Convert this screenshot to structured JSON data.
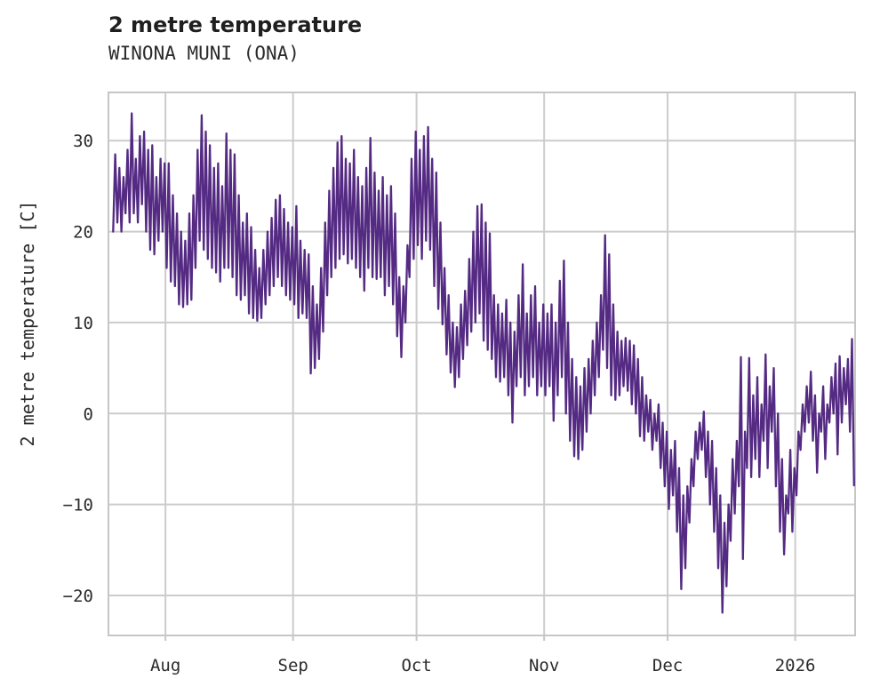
{
  "header": {
    "title": "2 metre temperature",
    "subtitle": "WINONA MUNI (ONA)"
  },
  "chart_data": {
    "type": "line",
    "title": "2 metre temperature",
    "subtitle": "WINONA MUNI (ONA)",
    "xlabel": "",
    "ylabel": "2 metre temperature [C]",
    "legend": "none",
    "grid": true,
    "line_color": "#542a83",
    "grid_color": "#cccccc",
    "spine_color": "#c6c6c6",
    "text_color": "#2b2b2b",
    "background_color": "#ffffff",
    "ylim": [
      -24.4,
      35.3
    ],
    "xlim_days": [
      -0.85,
      180.55
    ],
    "y_ticks": [
      -20,
      -10,
      0,
      10,
      20,
      30
    ],
    "x_ticks": [
      {
        "day": 13,
        "label": "Aug"
      },
      {
        "day": 44,
        "label": "Sep"
      },
      {
        "day": 74,
        "label": "Oct"
      },
      {
        "day": 105,
        "label": "Nov"
      },
      {
        "day": 135,
        "label": "Dec"
      },
      {
        "day": 166,
        "label": "2026"
      }
    ],
    "month_order": [
      "Jul",
      "Aug",
      "Sep",
      "Oct",
      "Nov",
      "Dec",
      "Jan"
    ],
    "daily_min_max": {
      "Jul": [
        [
          20,
          28.5
        ],
        [
          21,
          27
        ],
        [
          20,
          26
        ],
        [
          22,
          29
        ],
        [
          21,
          33
        ],
        [
          22,
          28
        ],
        [
          21,
          30.5
        ],
        [
          23,
          31
        ],
        [
          20,
          29
        ],
        [
          18,
          29.5
        ],
        [
          17.5,
          26
        ],
        [
          19,
          28
        ],
        [
          20,
          27.5
        ]
      ],
      "Aug": [
        [
          16,
          27.5
        ],
        [
          14.5,
          24
        ],
        [
          14,
          22
        ],
        [
          12,
          20
        ],
        [
          11.7,
          19
        ],
        [
          12,
          22
        ],
        [
          12.5,
          24
        ],
        [
          16,
          29
        ],
        [
          19,
          32.8
        ],
        [
          18,
          31
        ],
        [
          17,
          29.5
        ],
        [
          16,
          27
        ],
        [
          15.5,
          27.5
        ],
        [
          14.5,
          25
        ],
        [
          16,
          30.8
        ],
        [
          16,
          29
        ],
        [
          15,
          28.5
        ],
        [
          13,
          24
        ],
        [
          12.5,
          21
        ],
        [
          13,
          22
        ],
        [
          11,
          20.5
        ],
        [
          10.5,
          18
        ],
        [
          10.2,
          16
        ],
        [
          10.5,
          18
        ],
        [
          12,
          20
        ],
        [
          13,
          21.5
        ],
        [
          14,
          23.5
        ],
        [
          15,
          24
        ],
        [
          14,
          22.5
        ],
        [
          13,
          21
        ],
        [
          12.5,
          20.5
        ]
      ],
      "Sep": [
        [
          12,
          22.8
        ],
        [
          10.5,
          19
        ],
        [
          11,
          18
        ],
        [
          10.5,
          17.5
        ],
        [
          4.4,
          14
        ],
        [
          5,
          12
        ],
        [
          6,
          16
        ],
        [
          9,
          21
        ],
        [
          13,
          24.5
        ],
        [
          15,
          27
        ],
        [
          16,
          29.8
        ],
        [
          17,
          30.5
        ],
        [
          17.5,
          28
        ],
        [
          16.5,
          27.5
        ],
        [
          17,
          29
        ],
        [
          16,
          26
        ],
        [
          15,
          25
        ],
        [
          13.5,
          27
        ],
        [
          16,
          30.3
        ],
        [
          15,
          26.5
        ],
        [
          14.8,
          24.5
        ],
        [
          15,
          26
        ],
        [
          13,
          24
        ],
        [
          14,
          25
        ],
        [
          12,
          22
        ],
        [
          8.5,
          15
        ],
        [
          6.2,
          14
        ],
        [
          10,
          18.5
        ],
        [
          15,
          28
        ],
        [
          17,
          31
        ]
      ],
      "Oct": [
        [
          18.5,
          29
        ],
        [
          17,
          30.5
        ],
        [
          19,
          31.5
        ],
        [
          18,
          28
        ],
        [
          14,
          26.5
        ],
        [
          11.5,
          21
        ],
        [
          9.8,
          16
        ],
        [
          6.5,
          13
        ],
        [
          4.5,
          10
        ],
        [
          2.9,
          9.5
        ],
        [
          4,
          12
        ],
        [
          6,
          13.5
        ],
        [
          7.5,
          17
        ],
        [
          9,
          20
        ],
        [
          10,
          22.8
        ],
        [
          11,
          23
        ],
        [
          8,
          21
        ],
        [
          7,
          19.8
        ],
        [
          6,
          13
        ],
        [
          4,
          12
        ],
        [
          3.5,
          11
        ],
        [
          4,
          12.5
        ],
        [
          2,
          10
        ],
        [
          -1,
          9
        ],
        [
          3,
          13
        ],
        [
          4,
          16.4
        ],
        [
          2,
          11
        ],
        [
          3,
          13
        ],
        [
          4,
          14
        ],
        [
          2,
          10
        ],
        [
          3,
          12
        ]
      ],
      "Nov": [
        [
          2,
          11
        ],
        [
          3,
          12
        ],
        [
          -0.8,
          10
        ],
        [
          2,
          14.6
        ],
        [
          4,
          16.8
        ],
        [
          0,
          10
        ],
        [
          -3,
          6
        ],
        [
          -4.7,
          4
        ],
        [
          -5,
          3
        ],
        [
          -4,
          5
        ],
        [
          -2,
          6
        ],
        [
          0,
          8
        ],
        [
          2,
          10
        ],
        [
          4,
          13
        ],
        [
          7,
          19.6
        ],
        [
          5,
          17.5
        ],
        [
          2,
          12
        ],
        [
          1.5,
          9
        ],
        [
          2,
          8
        ],
        [
          3,
          8.3
        ],
        [
          2.5,
          8
        ],
        [
          1,
          7.5
        ],
        [
          0,
          6
        ],
        [
          -2.5,
          4
        ],
        [
          -3,
          2
        ],
        [
          -2,
          1.5
        ],
        [
          -4,
          0
        ],
        [
          -3,
          1
        ],
        [
          -6,
          -1
        ],
        [
          -8,
          -2
        ]
      ],
      "Dec": [
        [
          -10.5,
          -4
        ],
        [
          -9,
          -3
        ],
        [
          -13,
          -6
        ],
        [
          -19.3,
          -9
        ],
        [
          -17,
          -8
        ],
        [
          -12,
          -5
        ],
        [
          -8,
          -2
        ],
        [
          -5,
          -1
        ],
        [
          -4,
          0.2
        ],
        [
          -7,
          -2
        ],
        [
          -10,
          -3
        ],
        [
          -13,
          -6
        ],
        [
          -17,
          -9
        ],
        [
          -21.9,
          -12
        ],
        [
          -19,
          -10
        ],
        [
          -14,
          -5
        ],
        [
          -11,
          -3
        ],
        [
          -8,
          6.2
        ],
        [
          -16,
          -2
        ],
        [
          -6,
          6.1
        ],
        [
          -7,
          2
        ],
        [
          -5,
          4
        ],
        [
          -7,
          1
        ],
        [
          -3,
          6.5
        ],
        [
          -6,
          3
        ],
        [
          -2,
          5
        ],
        [
          -8,
          0
        ],
        [
          -13,
          -5
        ],
        [
          -15.5,
          -9
        ],
        [
          -11,
          -4
        ],
        [
          -13,
          -6
        ]
      ],
      "Jan": [
        [
          -9,
          -2
        ],
        [
          -4,
          1
        ],
        [
          -2,
          3
        ],
        [
          -1,
          4.6
        ],
        [
          -3,
          2
        ],
        [
          -6.5,
          0
        ],
        [
          -2,
          3
        ],
        [
          -5,
          1
        ],
        [
          -1,
          4
        ],
        [
          0,
          5.5
        ],
        [
          -4.5,
          6.3
        ],
        [
          -1,
          5
        ],
        [
          1,
          6
        ],
        [
          -2,
          8.2
        ],
        [
          -7.9
        ]
      ]
    }
  }
}
